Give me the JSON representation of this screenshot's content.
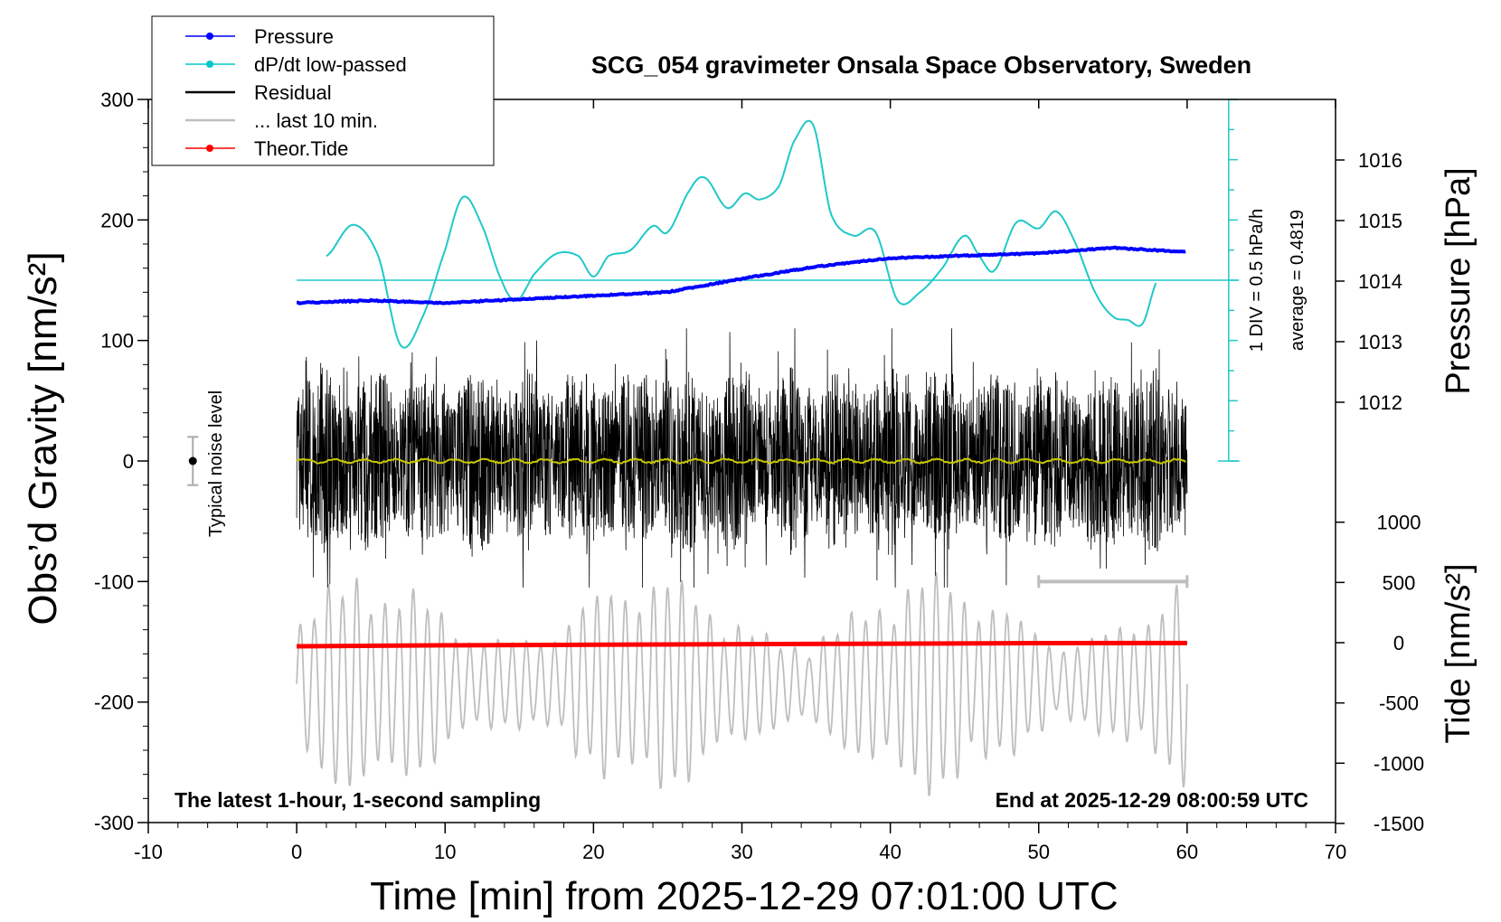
{
  "title": "SCG_054 gravimeter Onsala Space Observatory, Sweden",
  "xlabel": "Time [min] from 2025-12-29 07:01:00 UTC",
  "ylabel_left": "Obs’d Gravity [nm/s²]",
  "ylabel_right_top": "Pressure [hPa]",
  "ylabel_right_bottom": "Tide [nm/s²]",
  "annotation_left": "The latest 1-hour, 1-second sampling",
  "annotation_right": "End at 2025-12-29 08:00:59 UTC",
  "noise_label": "Typical noise level",
  "div_label": "1 DIV = 0.5 hPa/h",
  "average_label": "average = 0.4819",
  "legend": [
    {
      "label": "Pressure",
      "color": "#0000ff",
      "marker": true
    },
    {
      "label": "dP/dt low-passed",
      "color": "#00c8c8",
      "marker": true
    },
    {
      "label": "Residual",
      "color": "#000000",
      "marker": false
    },
    {
      "label": "... last 10 min.",
      "color": "#bebebe",
      "marker": false
    },
    {
      "label": "Theor.Tide",
      "color": "#ff0000",
      "marker": true
    }
  ],
  "colors": {
    "pressure": "#0000ff",
    "dpdt": "#20c8c8",
    "residual": "#000000",
    "residual_smoothed": "#c8c800",
    "last10": "#bebebe",
    "tide": "#ff0000"
  },
  "chart_data": {
    "type": "line",
    "xlim": [
      -10,
      70
    ],
    "xticks": [
      "-10",
      "0",
      "10",
      "20",
      "30",
      "40",
      "50",
      "60",
      "70"
    ],
    "ylim_left": [
      -300,
      300
    ],
    "yticks_left": [
      "-300",
      "-200",
      "-100",
      "0",
      "100",
      "200",
      "300"
    ],
    "pressure_axis": {
      "ticks": [
        "1012",
        "1013",
        "1014",
        "1015",
        "1016"
      ],
      "values": [
        1012,
        1013,
        1014,
        1015,
        1016
      ]
    },
    "tide_axis": {
      "ticks": [
        "-1500",
        "-1000",
        "-500",
        "0",
        "500",
        "1000"
      ],
      "values": [
        -1500,
        -1000,
        -500,
        0,
        500,
        1000
      ]
    },
    "series": [
      {
        "name": "Pressure",
        "unit": "hPa",
        "x": [
          0,
          5,
          10,
          15,
          20,
          25,
          30,
          35,
          40,
          45,
          50,
          55,
          60
        ],
        "values": [
          1013.64,
          1013.68,
          1013.64,
          1013.7,
          1013.76,
          1013.82,
          1014.04,
          1014.24,
          1014.38,
          1014.42,
          1014.46,
          1014.55,
          1014.48
        ]
      },
      {
        "name": "dP/dt low-passed",
        "unit": "nm/s2 plotting scale",
        "x": [
          2,
          3.8,
          5.5,
          7,
          8.5,
          10,
          11.2,
          12.5,
          13.8,
          14.8,
          16,
          17.5,
          19,
          20,
          21,
          22.5,
          24,
          25,
          26.5,
          27.5,
          29,
          30.2,
          31.2,
          32.5,
          33.5,
          34.8,
          36,
          37.5,
          39,
          40.5,
          42,
          43.5,
          45,
          46,
          47,
          48.5,
          50,
          51.2,
          52.5,
          53.8,
          55,
          56,
          57,
          58
        ],
        "values": [
          170,
          196,
          170,
          96,
          120,
          175,
          219,
          195,
          150,
          133,
          155,
          172,
          170,
          153,
          170,
          175,
          195,
          190,
          225,
          235,
          210,
          222,
          217,
          228,
          265,
          279,
          205,
          187,
          190,
          133,
          140,
          160,
          187,
          170,
          158,
          198,
          193,
          207,
          180,
          140,
          120,
          117,
          114,
          150
        ]
      },
      {
        "name": "Residual",
        "unit": "nm/s2",
        "x_range": [
          0,
          60
        ],
        "amplitude_range": [
          -105,
          110
        ]
      },
      {
        "name": "... last 10 min.",
        "x_range": [
          50,
          60
        ]
      },
      {
        "name": "Theor.Tide",
        "unit": "nm/s2",
        "x": [
          0,
          10,
          20,
          30,
          40,
          50,
          60
        ],
        "values": [
          -30,
          -22,
          -17,
          -12,
          -8,
          -4,
          -3
        ]
      }
    ]
  }
}
